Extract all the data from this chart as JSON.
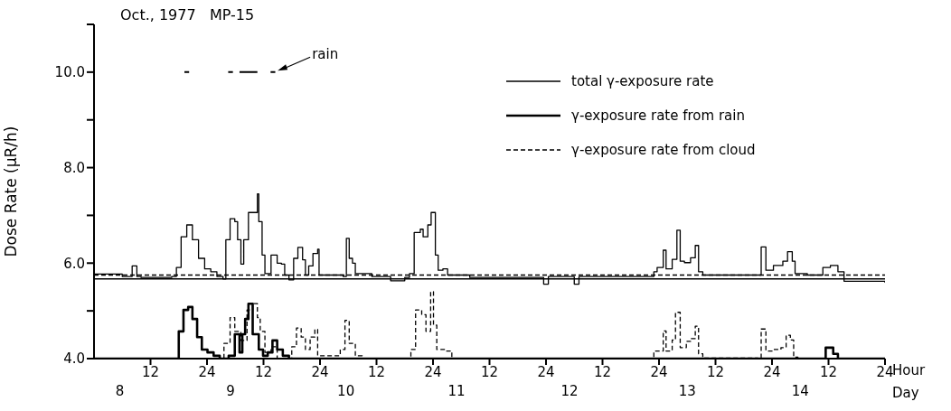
{
  "chart_data": {
    "type": "step",
    "title": "Oct., 1977   MP-15",
    "ylabel": "Dose Rate (μR/h)",
    "xlabel": "Hour",
    "x2label": "Day",
    "xlim": [
      "1977-10-08T00:00",
      "1977-10-15T00:00"
    ],
    "xticks": [
      {
        "value": "1977-10-08T12:00",
        "label": "12"
      },
      {
        "value": "1977-10-09T00:00",
        "label": "24"
      },
      {
        "value": "1977-10-09T12:00",
        "label": "12"
      },
      {
        "value": "1977-10-10T00:00",
        "label": "24"
      },
      {
        "value": "1977-10-10T12:00",
        "label": "12"
      },
      {
        "value": "1977-10-11T00:00",
        "label": "24"
      },
      {
        "value": "1977-10-11T12:00",
        "label": "12"
      },
      {
        "value": "1977-10-12T00:00",
        "label": "24"
      },
      {
        "value": "1977-10-12T12:00",
        "label": "12"
      },
      {
        "value": "1977-10-13T00:00",
        "label": "24"
      },
      {
        "value": "1977-10-13T12:00",
        "label": "12"
      },
      {
        "value": "1977-10-14T00:00",
        "label": "24"
      },
      {
        "value": "1977-10-14T12:00",
        "label": "12"
      },
      {
        "value": "1977-10-15T00:00",
        "label": "24"
      }
    ],
    "x2lim": [
      "1977-10-08T00:00",
      "1977-10-15T00:00"
    ],
    "x2ticks": [
      {
        "value": "1977-10-08T05:30",
        "label": "8"
      },
      {
        "value": "1977-10-09T05:00",
        "label": "9"
      },
      {
        "value": "1977-10-10T05:30",
        "label": "10"
      },
      {
        "value": "1977-10-11T05:00",
        "label": "11"
      },
      {
        "value": "1977-10-12T05:00",
        "label": "12"
      },
      {
        "value": "1977-10-13T06:00",
        "label": "13"
      },
      {
        "value": "1977-10-14T06:00",
        "label": "14"
      }
    ],
    "ylim": [
      4,
      11
    ],
    "yticks": [
      {
        "value": 4,
        "label": "4.0"
      },
      {
        "value": 5,
        "label": null
      },
      {
        "value": 6,
        "label": "6.0"
      },
      {
        "value": 7,
        "label": null
      },
      {
        "value": 8,
        "label": "8.0"
      },
      {
        "value": 9,
        "label": null
      },
      {
        "value": 10,
        "label": "10.0"
      },
      {
        "value": 11,
        "label": null
      }
    ],
    "grid": false,
    "legend": "top right",
    "ref_lines": [
      {
        "axis": "y",
        "value": 5.67,
        "line_style": "solid",
        "color": "#000000"
      },
      {
        "axis": "y",
        "value": 5.75,
        "line_style": "dashed",
        "color": "#000000"
      }
    ],
    "series": [
      {
        "name": "total γ-exposure rate",
        "color": "#000000",
        "line_style": "solid",
        "x": [
          "1977-10-08T00:00",
          "1977-10-08T06:00",
          "1977-10-08T08:06",
          "1977-10-08T09:06",
          "1977-10-08T10:00",
          "1977-10-08T16:30",
          "1977-10-08T17:30",
          "1977-10-08T18:30",
          "1977-10-08T19:42",
          "1977-10-08T20:54",
          "1977-10-08T22:12",
          "1977-10-08T23:30",
          "1977-10-09T00:48",
          "1977-10-09T02:06",
          "1977-10-09T03:24",
          "1977-10-09T04:00",
          "1977-10-09T04:54",
          "1977-10-09T05:54",
          "1977-10-09T06:30",
          "1977-10-09T07:12",
          "1977-10-09T07:48",
          "1977-10-09T08:48",
          "1977-10-09T10:42",
          "1977-10-09T11:00",
          "1977-10-09T11:42",
          "1977-10-09T12:18",
          "1977-10-09T13:36",
          "1977-10-09T14:54",
          "1977-10-09T15:48",
          "1977-10-09T16:30",
          "1977-10-09T17:24",
          "1977-10-09T18:24",
          "1977-10-09T19:18",
          "1977-10-09T20:18",
          "1977-10-09T20:54",
          "1977-10-09T21:36",
          "1977-10-09T22:30",
          "1977-10-09T23:30",
          "1977-10-09T23:48",
          "1977-10-10T04:54",
          "1977-10-10T05:36",
          "1977-10-10T06:12",
          "1977-10-10T06:54",
          "1977-10-10T07:30",
          "1977-10-10T11:00",
          "1977-10-10T15:00",
          "1977-10-10T18:00",
          "1977-10-10T19:00",
          "1977-10-10T20:00",
          "1977-10-10T21:18",
          "1977-10-10T21:54",
          "1977-10-10T22:54",
          "1977-10-10T23:36",
          "1977-10-11T00:30",
          "1977-10-11T01:06",
          "1977-10-11T02:06",
          "1977-10-11T03:06",
          "1977-10-11T07:48",
          "1977-10-11T23:30",
          "1977-10-12T00:30",
          "1977-10-12T06:00",
          "1977-10-12T07:00",
          "1977-10-12T14:00",
          "1977-10-12T22:54",
          "1977-10-12T23:36",
          "1977-10-13T00:54",
          "1977-10-13T01:30",
          "1977-10-13T02:48",
          "1977-10-13T03:48",
          "1977-10-13T04:30",
          "1977-10-13T05:24",
          "1977-10-13T06:42",
          "1977-10-13T07:42",
          "1977-10-13T08:24",
          "1977-10-13T09:18",
          "1977-10-13T21:00",
          "1977-10-13T21:42",
          "1977-10-13T22:42",
          "1977-10-14T00:18",
          "1977-10-14T02:18",
          "1977-10-14T03:18",
          "1977-10-14T04:18",
          "1977-10-14T04:54",
          "1977-10-14T07:30",
          "1977-10-14T10:48",
          "1977-10-14T12:24",
          "1977-10-14T14:00",
          "1977-10-14T15:18",
          "1977-10-15T00:00"
        ],
        "values": [
          5.77,
          5.72,
          5.94,
          5.72,
          5.7,
          5.72,
          5.91,
          6.55,
          6.8,
          6.49,
          6.1,
          5.88,
          5.82,
          5.72,
          5.67,
          6.49,
          6.93,
          6.87,
          6.49,
          5.98,
          6.49,
          7.06,
          7.45,
          6.87,
          6.17,
          5.78,
          6.17,
          6.0,
          5.98,
          5.75,
          5.65,
          6.1,
          6.33,
          6.07,
          5.75,
          5.94,
          6.2,
          6.29,
          5.75,
          5.72,
          6.52,
          6.1,
          6.0,
          5.78,
          5.72,
          5.63,
          5.7,
          5.78,
          6.64,
          6.71,
          6.55,
          6.8,
          7.06,
          6.17,
          5.85,
          5.88,
          5.75,
          5.7,
          5.56,
          5.72,
          5.56,
          5.72,
          5.72,
          5.82,
          5.91,
          6.27,
          5.88,
          6.08,
          6.69,
          6.04,
          6.01,
          6.11,
          6.37,
          5.82,
          5.75,
          5.75,
          6.34,
          5.85,
          5.95,
          6.04,
          6.24,
          6.04,
          5.78,
          5.75,
          5.91,
          5.95,
          5.82,
          5.62,
          5.59
        ]
      },
      {
        "name": "γ-exposure rate from rain",
        "color": "#000000",
        "line_style": "solid",
        "x": [
          "1977-10-08T00:00",
          "1977-10-08T17:18",
          "1977-10-08T18:00",
          "1977-10-08T19:00",
          "1977-10-08T20:00",
          "1977-10-08T20:54",
          "1977-10-08T21:54",
          "1977-10-08T22:54",
          "1977-10-09T00:06",
          "1977-10-09T01:24",
          "1977-10-09T02:42",
          "1977-10-09T04:36",
          "1977-10-09T05:54",
          "1977-10-09T06:54",
          "1977-10-09T07:30",
          "1977-10-09T08:06",
          "1977-10-09T08:48",
          "1977-10-09T09:42",
          "1977-10-09T11:00",
          "1977-10-09T11:54",
          "1977-10-09T12:54",
          "1977-10-09T13:54",
          "1977-10-09T14:54",
          "1977-10-09T16:06",
          "1977-10-09T17:24",
          "1977-10-14T10:00",
          "1977-10-14T11:24",
          "1977-10-14T13:00",
          "1977-10-14T14:00",
          "1977-10-15T00:00"
        ],
        "values": [
          4,
          4,
          4.57,
          5.02,
          5.08,
          4.83,
          4.45,
          4.19,
          4.13,
          4.06,
          4,
          4.06,
          4.51,
          4.13,
          4.51,
          4.83,
          5.15,
          4.51,
          4.19,
          4.06,
          4.13,
          4.38,
          4.19,
          4.06,
          4,
          4,
          4.23,
          4.1,
          4,
          4
        ]
      },
      {
        "name": "γ-exposure rate from cloud",
        "color": "#000000",
        "line_style": "dashed",
        "x": [
          "1977-10-08T00:00",
          "1977-10-09T03:00",
          "1977-10-09T03:36",
          "1977-10-09T04:54",
          "1977-10-09T05:54",
          "1977-10-09T07:12",
          "1977-10-09T08:30",
          "1977-10-09T09:42",
          "1977-10-09T10:42",
          "1977-10-09T11:18",
          "1977-10-09T12:18",
          "1977-10-09T13:36",
          "1977-10-09T14:54",
          "1977-10-09T18:00",
          "1977-10-09T19:00",
          "1977-10-09T20:00",
          "1977-10-09T20:54",
          "1977-10-09T21:54",
          "1977-10-09T22:54",
          "1977-10-09T23:30",
          "1977-10-10T01:06",
          "1977-10-10T04:18",
          "1977-10-10T05:18",
          "1977-10-10T06:12",
          "1977-10-10T07:30",
          "1977-10-10T09:00",
          "1977-10-10T19:18",
          "1977-10-10T20:18",
          "1977-10-10T21:36",
          "1977-10-10T22:30",
          "1977-10-10T23:30",
          "1977-10-11T00:06",
          "1977-10-11T00:48",
          "1977-10-11T02:42",
          "1977-10-11T04:00",
          "1977-10-12T22:54",
          "1977-10-13T00:54",
          "1977-10-13T01:30",
          "1977-10-13T02:48",
          "1977-10-13T03:30",
          "1977-10-13T04:30",
          "1977-10-13T05:48",
          "1977-10-13T06:42",
          "1977-10-13T07:42",
          "1977-10-13T08:24",
          "1977-10-13T09:18",
          "1977-10-13T21:00",
          "1977-10-13T21:42",
          "1977-10-13T22:42",
          "1977-10-14T00:18",
          "1977-10-14T01:54",
          "1977-10-14T03:00",
          "1977-10-14T03:54",
          "1977-10-14T04:36",
          "1977-10-14T05:30",
          "1977-10-15T00:00"
        ],
        "values": [
          4,
          4,
          4.32,
          4.86,
          4.57,
          4.38,
          5.02,
          5.15,
          4.86,
          4.57,
          4.13,
          4.25,
          4,
          4.25,
          4.64,
          4.45,
          4.19,
          4.45,
          4.61,
          4.06,
          4.06,
          4.19,
          4.8,
          4.32,
          4.06,
          4,
          4.19,
          5.02,
          4.92,
          4.57,
          5.4,
          4.7,
          4.19,
          4.16,
          4,
          4.16,
          4.58,
          4.16,
          4.39,
          4.97,
          4.23,
          4.36,
          4.42,
          4.68,
          4.1,
          4.01,
          4,
          4.62,
          4.16,
          4.19,
          4.23,
          4.49,
          4.39,
          4.03,
          4,
          4
        ]
      },
      {
        "type": "line",
        "color": "#000000",
        "line_style": "solid",
        "x": [
          "1977-10-08T19:12",
          "1977-10-08T20:12",
          "1977-10-08T20:18",
          "1977-10-09T04:30",
          "1977-10-09T05:30",
          "1977-10-09T05:36",
          "1977-10-09T06:54",
          "1977-10-09T10:42",
          "1977-10-09T10:48",
          "1977-10-09T13:30",
          "1977-10-09T14:30"
        ],
        "values": [
          10,
          10,
          null,
          10,
          10,
          null,
          10,
          10,
          null,
          10,
          10
        ]
      }
    ],
    "annotations": [
      {
        "text": "rain",
        "x": "1977-10-09T15:00",
        "y": 10
      }
    ]
  }
}
